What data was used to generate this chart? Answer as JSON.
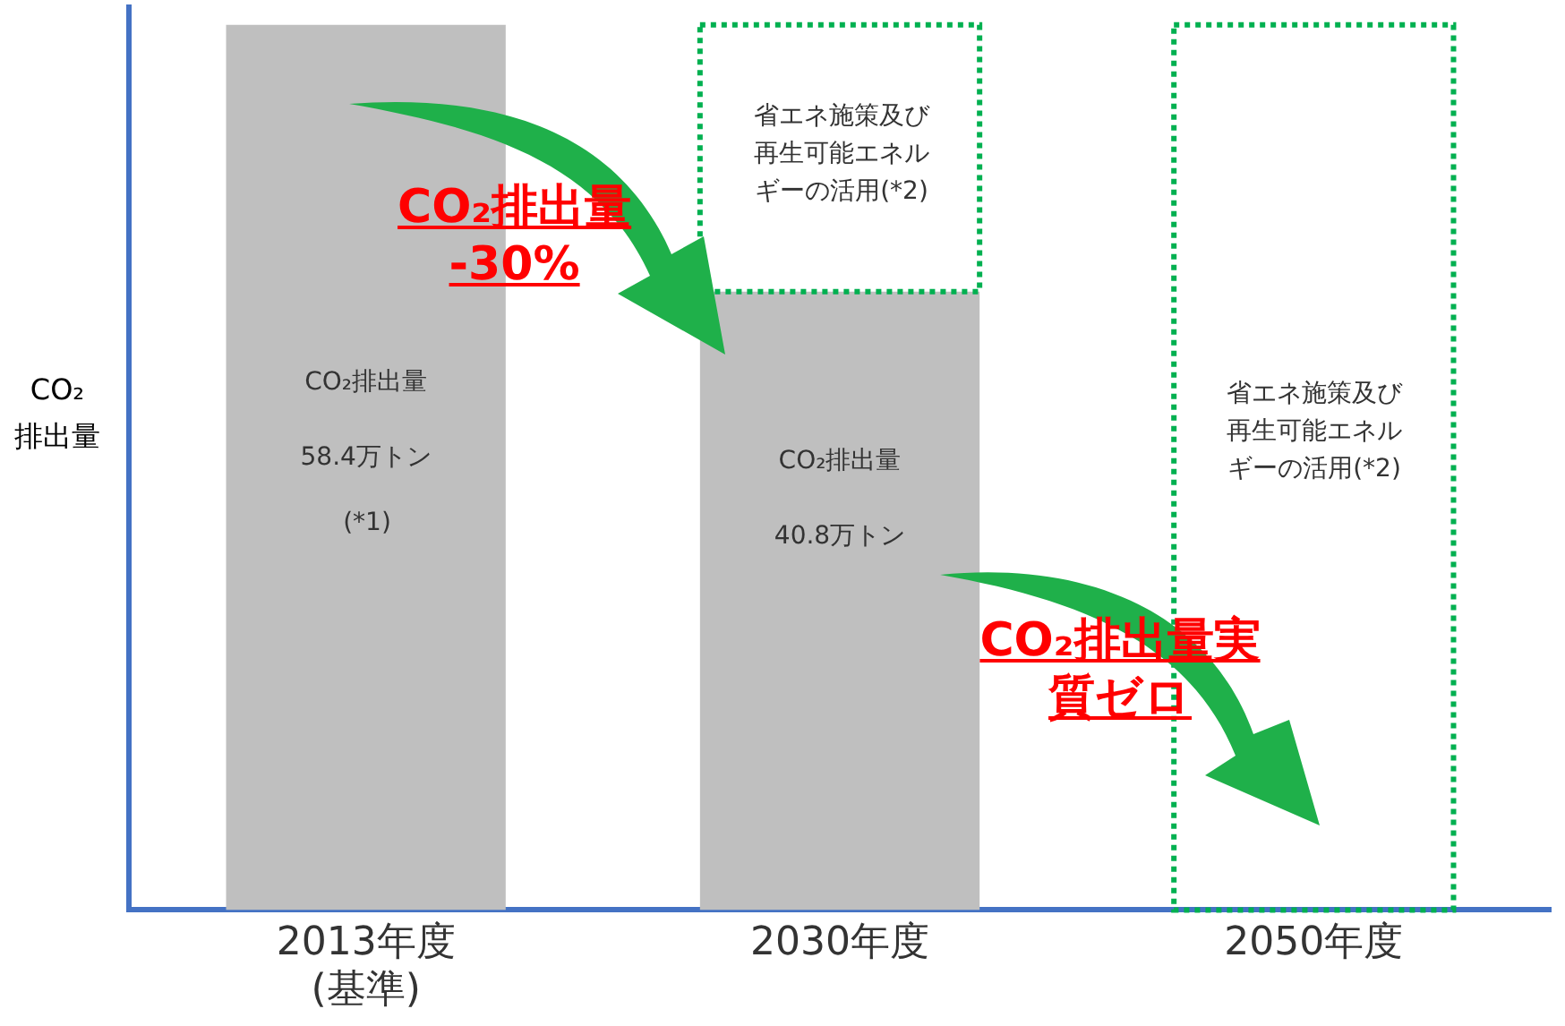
{
  "chart_data": {
    "type": "bar",
    "stacked": true,
    "ylabel": "CO₂\n排出量",
    "categories": [
      "2013年度\n(基準)",
      "2030年度",
      "2050年度"
    ],
    "tick_labels": "x",
    "grid": false,
    "legend": false,
    "series": [
      {
        "name": "CO₂排出量",
        "color": "#bfbfbf",
        "values": [
          58.4,
          40.8,
          0
        ],
        "value_labels": [
          "58.4万トン",
          "40.8万トン",
          null
        ]
      },
      {
        "color": "#00b050",
        "line_style": "dotted",
        "values": [
          null,
          17.6,
          58.4
        ]
      }
    ],
    "annotations": [
      "CO₂排出量\n-30%",
      "CO₂排出量実質ゼロ",
      "(*1)",
      "省エネ施策及び再生可能エネルギーの活用(*2)",
      "省エネ施策及び再生可能エネルギーの活用(*2)"
    ]
  }
}
